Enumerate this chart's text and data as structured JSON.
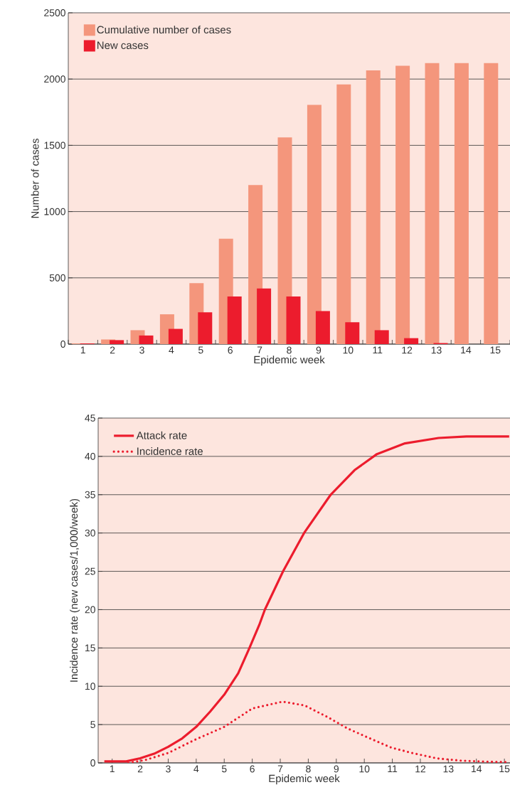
{
  "chart_data": [
    {
      "type": "bar",
      "xlabel": "Epidemic week",
      "ylabel": "Number of cases",
      "categories": [
        "1",
        "2",
        "3",
        "4",
        "5",
        "6",
        "7",
        "8",
        "9",
        "10",
        "11",
        "12",
        "13",
        "14",
        "15"
      ],
      "series": [
        {
          "name": "Cumulative number of cases",
          "color": "#f4967c",
          "values": [
            5,
            35,
            105,
            225,
            460,
            795,
            1200,
            1560,
            1805,
            1960,
            2065,
            2100,
            2120,
            2120,
            2120
          ]
        },
        {
          "name": "New cases",
          "color": "#ec1c2d",
          "values": [
            5,
            30,
            65,
            115,
            240,
            360,
            420,
            360,
            250,
            165,
            105,
            45,
            8,
            0,
            0
          ]
        }
      ],
      "ylim": [
        0,
        2500
      ],
      "yticks": [
        0,
        500,
        1000,
        1500,
        2000,
        2500
      ],
      "grid": "y",
      "legend": "top left"
    },
    {
      "type": "line",
      "xlabel": "Epidemic week",
      "ylabel": "Incidence rate (new cases/1,000/week)",
      "series": [
        {
          "name": "Attack rate",
          "color": "#ec1c2d",
          "line_style": "solid",
          "x": [
            0.72,
            1.5,
            2,
            2.5,
            3,
            3.5,
            4,
            4.5,
            5,
            5.5,
            5.9,
            6.25,
            6.45,
            7.1,
            7.85,
            8.8,
            9.65,
            10.45,
            11.45,
            12.65,
            13.65,
            15.17
          ],
          "values": [
            0.2,
            0.2,
            0.6,
            1.2,
            2.1,
            3.2,
            4.7,
            6.7,
            8.9,
            11.7,
            15,
            18,
            20,
            25,
            30,
            35,
            38.2,
            40.3,
            41.7,
            42.4,
            42.6,
            42.6
          ]
        },
        {
          "name": "Incidence rate",
          "color": "#ec1c2d",
          "line_style": "dotted",
          "x": [
            1.58,
            2.2,
            3,
            4,
            5,
            6,
            7.08,
            7.87,
            8.68,
            9.4,
            10.2,
            10.96,
            11.7,
            12.58,
            13.44,
            14.46,
            15.17
          ],
          "values": [
            0,
            0.4,
            1.3,
            3.1,
            4.7,
            7.1,
            8,
            7.5,
            6,
            4.5,
            3.2,
            2,
            1.3,
            0.6,
            0.3,
            0.15,
            0.1
          ]
        }
      ],
      "xlim": [
        0.5,
        15.2
      ],
      "xticks": [
        1,
        2,
        3,
        4,
        5,
        6,
        7,
        8,
        9,
        10,
        11,
        12,
        13,
        14,
        15
      ],
      "ylim": [
        0,
        45
      ],
      "yticks": [
        0,
        5,
        10,
        15,
        20,
        25,
        30,
        35,
        40,
        45
      ],
      "grid": "y",
      "legend": "top left"
    }
  ]
}
